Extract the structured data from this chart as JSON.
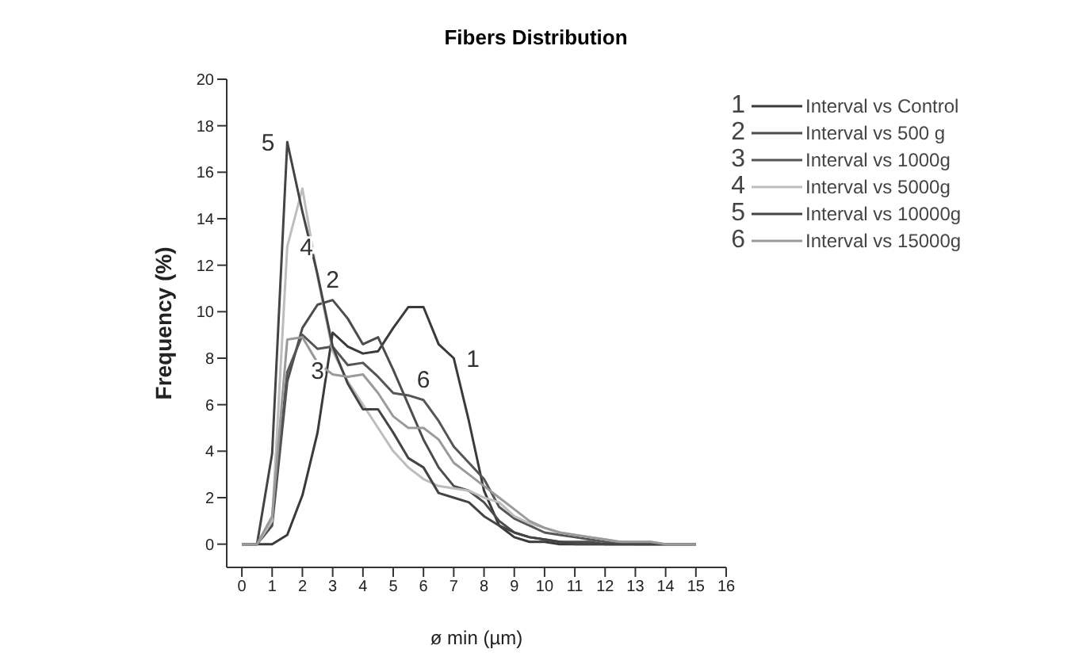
{
  "chart_data": {
    "type": "line",
    "title": "Fibers Distribution",
    "xlabel": "ø min (µm)",
    "ylabel": "Frequency (%)",
    "x": [
      0,
      0.5,
      1,
      1.5,
      2,
      2.5,
      3,
      3.5,
      4,
      4.5,
      5,
      5.5,
      6,
      6.5,
      7,
      7.5,
      8,
      8.5,
      9,
      9.5,
      10,
      10.5,
      11,
      11.5,
      12,
      12.5,
      13,
      13.5,
      14,
      14.5,
      15
    ],
    "series": [
      {
        "name": "Interval vs Control",
        "color": "#3a3a3a",
        "values": [
          0,
          0,
          0,
          0.4,
          2.1,
          4.8,
          9.1,
          8.5,
          8.2,
          8.3,
          9.3,
          10.2,
          10.2,
          8.6,
          8,
          5.3,
          2.3,
          0.8,
          0.3,
          0.1,
          0.1,
          0,
          0,
          0,
          0,
          0,
          0,
          0,
          0,
          0,
          0
        ]
      },
      {
        "name": "Interval vs 500 g",
        "color": "#4c4c4c",
        "values": [
          0,
          0,
          0.8,
          7,
          9.3,
          10.3,
          10.5,
          9.7,
          8.6,
          8.9,
          7.5,
          6,
          4.5,
          3.3,
          2.5,
          2.3,
          1.8,
          1,
          0.5,
          0.3,
          0.2,
          0.1,
          0.1,
          0.1,
          0,
          0,
          0,
          0,
          0,
          0,
          0
        ]
      },
      {
        "name": "Interval vs 1000g",
        "color": "#555555",
        "values": [
          0,
          0,
          1,
          7.4,
          9,
          8.4,
          8.5,
          7.7,
          7.8,
          7.2,
          6.5,
          6.4,
          6.2,
          5.3,
          4.2,
          3.5,
          2.8,
          1.6,
          1.1,
          0.8,
          0.5,
          0.4,
          0.3,
          0.2,
          0.1,
          0.1,
          0,
          0,
          0,
          0,
          0
        ]
      },
      {
        "name": "Interval vs 5000g",
        "color": "#bdbdbd",
        "values": [
          0,
          0,
          1,
          12.8,
          15.3,
          11.5,
          8.3,
          7,
          6,
          5,
          4,
          3.3,
          2.8,
          2.5,
          2.4,
          2.3,
          2,
          1.8,
          1.2,
          0.9,
          0.7,
          0.5,
          0.4,
          0.3,
          0.2,
          0.1,
          0.1,
          0.1,
          0,
          0,
          0
        ]
      },
      {
        "name": "Interval vs 10000g",
        "color": "#444444",
        "values": [
          0,
          0,
          3.9,
          17.3,
          14.3,
          11.6,
          8.5,
          6.9,
          5.8,
          5.8,
          4.8,
          3.7,
          3.3,
          2.2,
          2,
          1.8,
          1.2,
          0.8,
          0.5,
          0.3,
          0.2,
          0.1,
          0,
          0,
          0,
          0,
          0,
          0,
          0,
          0,
          0
        ]
      },
      {
        "name": "Interval vs 15000g",
        "color": "#9a9a9a",
        "values": [
          0,
          0,
          1.2,
          8.8,
          8.9,
          7.8,
          7.3,
          7.2,
          7.3,
          6.5,
          5.5,
          5,
          5,
          4.5,
          3.5,
          3,
          2.5,
          2,
          1.5,
          1,
          0.7,
          0.5,
          0.4,
          0.3,
          0.2,
          0.1,
          0.1,
          0.1,
          0,
          0,
          0
        ]
      }
    ],
    "annotations": [
      {
        "text": "1",
        "x": 7,
        "y": 8
      },
      {
        "text": "2",
        "x": 3,
        "y": 10.5
      },
      {
        "text": "3",
        "x": 2.5,
        "y": 8.4
      },
      {
        "text": "4",
        "x": 1.5,
        "y": 12.8
      },
      {
        "text": "5",
        "x": 1.5,
        "y": 17.3
      },
      {
        "text": "6",
        "x": 6,
        "y": 6.2
      }
    ],
    "xlim": [
      -0.5,
      16
    ],
    "xticks": [
      0,
      1,
      2,
      3,
      4,
      5,
      6,
      7,
      8,
      9,
      10,
      11,
      12,
      13,
      14,
      15,
      16
    ],
    "ylim": [
      -1,
      20
    ],
    "yticks": [
      0,
      2,
      4,
      6,
      8,
      10,
      12,
      14,
      16,
      18,
      20
    ],
    "legend": "top right",
    "grid": false,
    "marker": "none",
    "line_style": "solid"
  }
}
